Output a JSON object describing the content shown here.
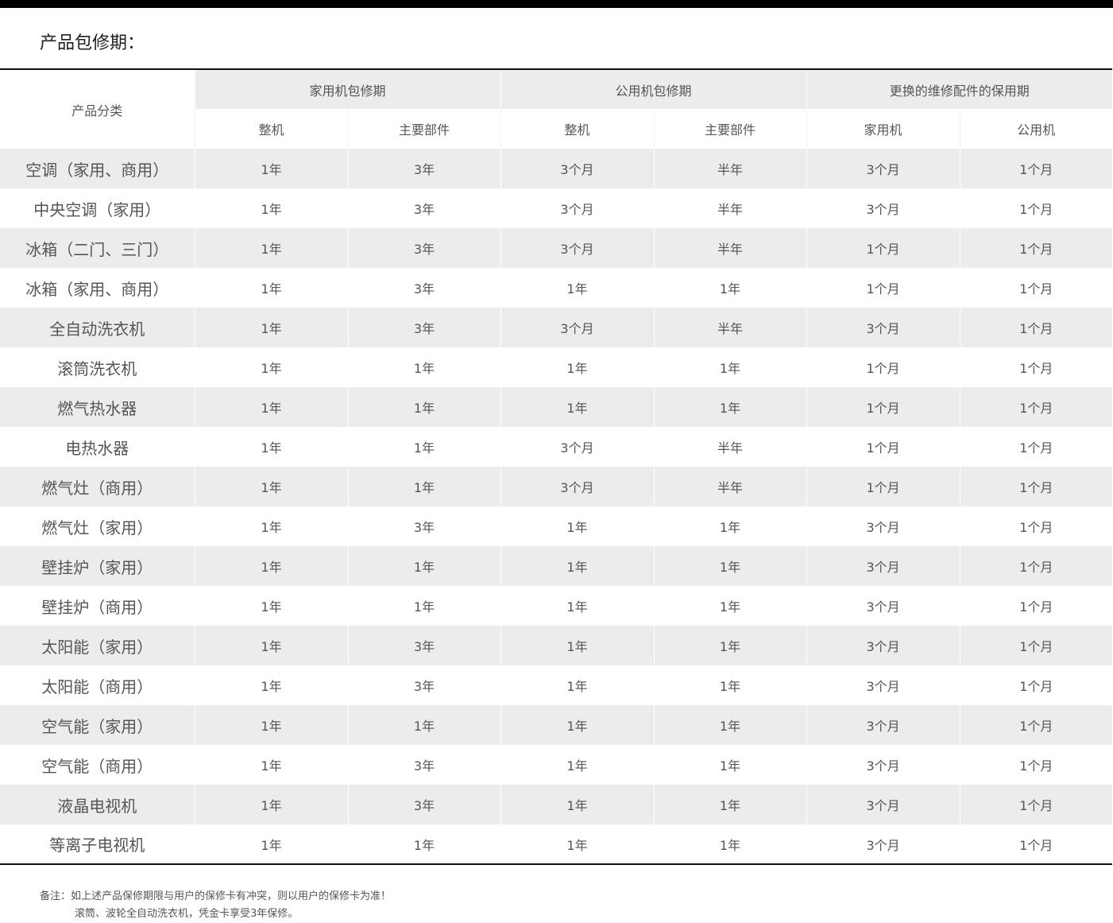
{
  "title": "产品包修期：",
  "header": {
    "category": "产品分类",
    "groups": [
      "家用机包修期",
      "公用机包修期",
      "更换的维修配件的保用期"
    ],
    "sub": [
      "整机",
      "主要部件",
      "整机",
      "主要部件",
      "家用机",
      "公用机"
    ]
  },
  "rows": [
    [
      "空调（家用、商用）",
      "1年",
      "3年",
      "3个月",
      "半年",
      "3个月",
      "1个月"
    ],
    [
      "中央空调（家用）",
      "1年",
      "3年",
      "3个月",
      "半年",
      "3个月",
      "1个月"
    ],
    [
      "冰箱（二门、三门）",
      "1年",
      "3年",
      "3个月",
      "半年",
      "1个月",
      "1个月"
    ],
    [
      "冰箱（家用、商用）",
      "1年",
      "3年",
      "1年",
      "1年",
      "1个月",
      "1个月"
    ],
    [
      "全自动洗衣机",
      "1年",
      "3年",
      "3个月",
      "半年",
      "3个月",
      "1个月"
    ],
    [
      "滚筒洗衣机",
      "1年",
      "1年",
      "1年",
      "1年",
      "1个月",
      "1个月"
    ],
    [
      "燃气热水器",
      "1年",
      "1年",
      "1年",
      "1年",
      "1个月",
      "1个月"
    ],
    [
      "电热水器",
      "1年",
      "1年",
      "3个月",
      "半年",
      "1个月",
      "1个月"
    ],
    [
      "燃气灶（商用）",
      "1年",
      "1年",
      "3个月",
      "半年",
      "1个月",
      "1个月"
    ],
    [
      "燃气灶（家用）",
      "1年",
      "3年",
      "1年",
      "1年",
      "3个月",
      "1个月"
    ],
    [
      "壁挂炉（家用）",
      "1年",
      "1年",
      "1年",
      "1年",
      "3个月",
      "1个月"
    ],
    [
      "壁挂炉（商用）",
      "1年",
      "1年",
      "1年",
      "1年",
      "3个月",
      "1个月"
    ],
    [
      "太阳能（家用）",
      "1年",
      "3年",
      "1年",
      "1年",
      "3个月",
      "1个月"
    ],
    [
      "太阳能（商用）",
      "1年",
      "3年",
      "1年",
      "1年",
      "3个月",
      "1个月"
    ],
    [
      "空气能（家用）",
      "1年",
      "1年",
      "1年",
      "1年",
      "3个月",
      "1个月"
    ],
    [
      "空气能（商用）",
      "1年",
      "3年",
      "1年",
      "1年",
      "3个月",
      "1个月"
    ],
    [
      "液晶电视机",
      "1年",
      "3年",
      "1年",
      "1年",
      "3个月",
      "1个月"
    ],
    [
      "等离子电视机",
      "1年",
      "1年",
      "1年",
      "1年",
      "3个月",
      "1个月"
    ]
  ],
  "notes": [
    "备注：如上述产品保修期限与用户的保修卡有冲突，则以用户的保修卡为准！",
    "滚筒、波轮全自动洗衣机，凭金卡享受3年保修。"
  ]
}
